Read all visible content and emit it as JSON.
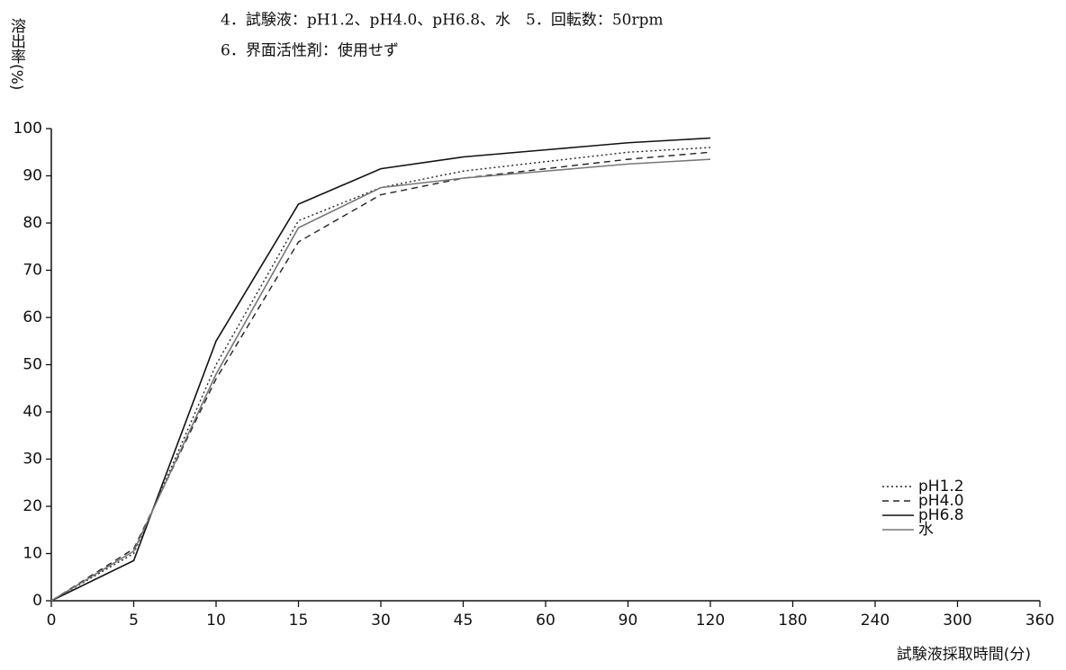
{
  "chart_data": {
    "type": "line",
    "annotations": [
      "4．試験液：pH1.2、pH4.0、pH6.8、水　5．回転数：50rpm",
      "6．界面活性剤：使用せず"
    ],
    "ylabel": "溶出率(%)",
    "xlabel": "試験液採取時間(分)",
    "categories": [
      "0",
      "5",
      "10",
      "15",
      "30",
      "45",
      "60",
      "90",
      "120",
      "180",
      "240",
      "300",
      "360"
    ],
    "series": [
      {
        "name": "pH1.2",
        "color": "#222222",
        "dash": "dotted",
        "values": [
          0,
          10,
          50,
          80.5,
          87.5,
          91,
          93,
          95,
          96,
          null,
          null,
          null,
          null
        ]
      },
      {
        "name": "pH4.0",
        "color": "#222222",
        "dash": "dashed",
        "values": [
          0,
          11,
          47,
          76,
          86,
          89.5,
          91.5,
          93.5,
          95,
          null,
          null,
          null,
          null
        ]
      },
      {
        "name": "pH6.8",
        "color": "#111111",
        "dash": "solid",
        "values": [
          0,
          8.5,
          55,
          84,
          91.5,
          94,
          95.5,
          97,
          98,
          null,
          null,
          null,
          null
        ]
      },
      {
        "name": "水",
        "color": "#777777",
        "dash": "solid",
        "values": [
          0,
          10.5,
          48,
          79,
          87.5,
          89.5,
          91,
          92.5,
          93.5,
          null,
          null,
          null,
          null
        ]
      }
    ],
    "ylim": [
      0,
      100
    ],
    "yticks": [
      0,
      10,
      20,
      30,
      40,
      50,
      60,
      70,
      80,
      90,
      100
    ],
    "legend": "lower-right"
  }
}
